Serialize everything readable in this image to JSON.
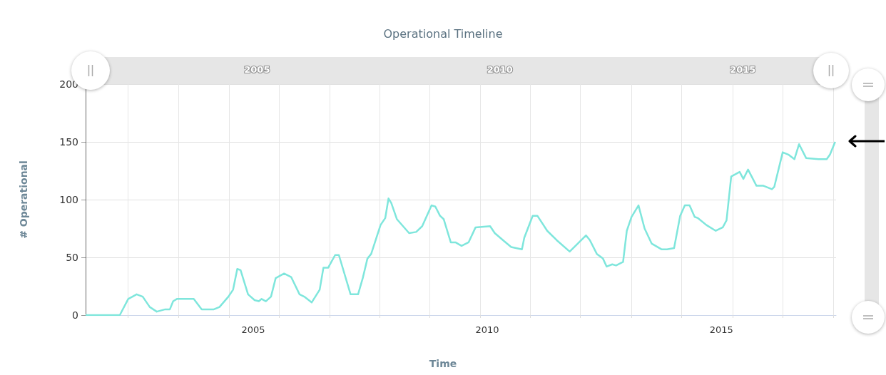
{
  "chart_data": {
    "type": "line",
    "title": "Operational Timeline",
    "xlabel": "Time",
    "ylabel": "# Operational",
    "x": [
      2001.42,
      2002.15,
      2002.33,
      2002.51,
      2002.64,
      2002.79,
      2002.94,
      2003.12,
      2003.22,
      2003.29,
      2003.37,
      2003.73,
      2003.9,
      2004.16,
      2004.28,
      2004.47,
      2004.57,
      2004.66,
      2004.73,
      2004.89,
      2005.03,
      2005.12,
      2005.18,
      2005.27,
      2005.38,
      2005.48,
      2005.66,
      2005.81,
      2005.99,
      2006.09,
      2006.25,
      2006.42,
      2006.5,
      2006.6,
      2006.75,
      2006.83,
      2007.08,
      2007.24,
      2007.34,
      2007.44,
      2007.52,
      2007.72,
      2007.82,
      2007.89,
      2007.95,
      2008.07,
      2008.33,
      2008.48,
      2008.61,
      2008.81,
      2008.89,
      2008.99,
      2009.07,
      2009.22,
      2009.32,
      2009.45,
      2009.6,
      2009.75,
      2010.06,
      2010.16,
      2010.36,
      2010.51,
      2010.74,
      2010.79,
      2010.97,
      2011.07,
      2011.28,
      2011.48,
      2011.76,
      2011.91,
      2012.11,
      2012.19,
      2012.34,
      2012.47,
      2012.55,
      2012.67,
      2012.75,
      2012.9,
      2012.98,
      2013.08,
      2013.23,
      2013.36,
      2013.51,
      2013.72,
      2013.84,
      2013.99,
      2014.12,
      2014.22,
      2014.32,
      2014.43,
      2014.5,
      2014.68,
      2014.88,
      2015.03,
      2015.11,
      2015.21,
      2015.39,
      2015.47,
      2015.57,
      2015.75,
      2015.9,
      2016.08,
      2016.13,
      2016.31,
      2016.43,
      2016.56,
      2016.66,
      2016.81,
      2017.07,
      2017.25,
      2017.32,
      2017.43
    ],
    "values": [
      0,
      0,
      14,
      18,
      16,
      7,
      3,
      5,
      5,
      12,
      14,
      14,
      5,
      5,
      7,
      16,
      22,
      40,
      39,
      18,
      13,
      12,
      14,
      12,
      16,
      32,
      36,
      33,
      18,
      16,
      11,
      22,
      41,
      41,
      52,
      52,
      18,
      18,
      32,
      49,
      53,
      78,
      84,
      101,
      97,
      83,
      71,
      72,
      77,
      95,
      94,
      86,
      83,
      63,
      63,
      60,
      63,
      76,
      77,
      71,
      64,
      59,
      57,
      67,
      86,
      86,
      73,
      65,
      55,
      61,
      69,
      65,
      53,
      49,
      42,
      44,
      43,
      46,
      73,
      85,
      95,
      75,
      62,
      57,
      57,
      58,
      86,
      95,
      95,
      85,
      84,
      78,
      73,
      76,
      82,
      120,
      124,
      118,
      126,
      112,
      112,
      109,
      111,
      141,
      139,
      135,
      148,
      136,
      135,
      135,
      139,
      150
    ],
    "color": "#7fe6dc",
    "marker": "none",
    "line_style": "solid",
    "grid": true,
    "xlim": [
      2001.42,
      2017.45
    ],
    "xticks": [
      {
        "value": 2002.32,
        "label": null
      },
      {
        "value": 2003.4,
        "label": null
      },
      {
        "value": 2004.48,
        "label": null
      },
      2005,
      {
        "value": 2005.56,
        "label": null
      },
      {
        "value": 2006.63,
        "label": null
      },
      {
        "value": 2007.7,
        "label": null
      },
      {
        "value": 2008.77,
        "label": null
      },
      {
        "value": 2009.85,
        "label": null
      },
      2010,
      {
        "value": 2010.91,
        "label": null
      },
      {
        "value": 2011.98,
        "label": null
      },
      {
        "value": 2013.08,
        "label": null
      },
      {
        "value": 2014.15,
        "label": null
      },
      2015,
      {
        "value": 2015.24,
        "label": null
      },
      {
        "value": 2016.31,
        "label": null
      },
      {
        "value": 2017.39,
        "label": null
      }
    ],
    "x2lim": [
      2001.47,
      2016.92
    ],
    "x2ticks": [
      2005,
      2010,
      2015
    ],
    "ylim": [
      0,
      200
    ],
    "yticks": [
      0,
      50,
      100,
      150,
      200
    ]
  }
}
